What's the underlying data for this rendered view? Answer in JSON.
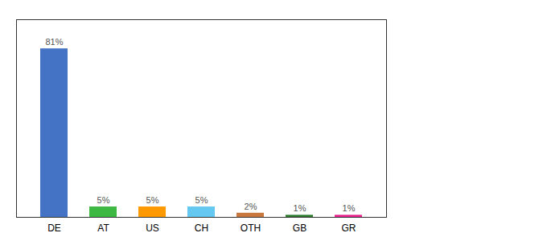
{
  "chart_data": {
    "type": "bar",
    "categories": [
      "DE",
      "AT",
      "US",
      "CH",
      "OTH",
      "GB",
      "GR"
    ],
    "values": [
      81,
      5,
      5,
      5,
      2,
      1,
      1
    ],
    "value_labels": [
      "81%",
      "5%",
      "5%",
      "5%",
      "2%",
      "1%",
      "1%"
    ],
    "colors": [
      "#4472C4",
      "#3CB843",
      "#FF9900",
      "#64C8F0",
      "#C8783C",
      "#2D7A2D",
      "#E8208C"
    ],
    "ylim": [
      0,
      95
    ],
    "data_labels": true,
    "tick_labels": "x",
    "grid": false
  }
}
